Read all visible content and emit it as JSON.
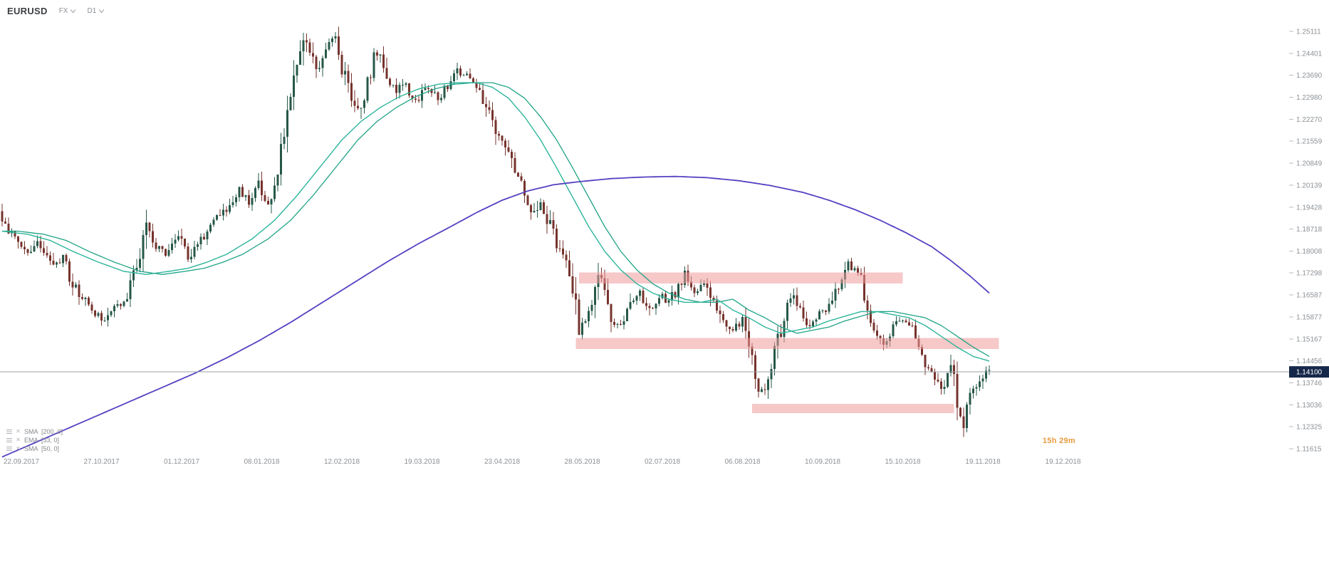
{
  "header": {
    "symbol": "EURUSD",
    "market": "FX",
    "timeframe": "D1"
  },
  "countdown": "15h 29m",
  "colors": {
    "background": "#ffffff",
    "candle_up": "#265849",
    "candle_down": "#76332d",
    "ema33": "#2cb59b",
    "sma50": "#1fa386",
    "sma200": "#5342c2",
    "zone": "#ef9a9a",
    "current_price_line": "#9aa0a6",
    "current_price_badge_bg": "#16284a",
    "current_price_badge_text": "#ffffff",
    "axis_text": "#8c9196",
    "countdown_text": "#e79b3c"
  },
  "chart_data": {
    "type": "candlestick",
    "symbol": "EURUSD",
    "timeframe": "D1",
    "title": "EURUSD FX D1 daily candlestick chart with SMA 200, EMA 33, SMA 50 and three highlighted support/resistance zones",
    "indicators": [
      {
        "name": "SMA",
        "period": 200,
        "shift": 0,
        "label": "SMA  [200, 0]"
      },
      {
        "name": "EMA",
        "period": 33,
        "shift": 0,
        "label": "EMA  [33, 0]"
      },
      {
        "name": "SMA",
        "period": 50,
        "shift": 0,
        "label": "SMA  [50, 0]"
      }
    ],
    "y_axis": {
      "labels": [
        "1.25111",
        "1.24401",
        "1.23690",
        "1.22980",
        "1.22270",
        "1.21559",
        "1.20849",
        "1.20139",
        "1.19428",
        "1.18718",
        "1.18008",
        "1.17298",
        "1.16587",
        "1.15877",
        "1.15167",
        "1.14456",
        "1.13746",
        "1.13036",
        "1.12325",
        "1.11615"
      ],
      "current_price": 1.141,
      "current_price_label": "1.14100"
    },
    "x_axis": {
      "labels": [
        "22.09.2017",
        "27.10.2017",
        "01.12.2017",
        "08.01.2018",
        "12.02.2018",
        "19.03.2018",
        "23.04.2018",
        "28.05.2018",
        "02.07.2018",
        "06.08.2018",
        "10.09.2018",
        "15.10.2018",
        "19.11.2018",
        "19.12.2018"
      ],
      "first_label_index": 6,
      "label_step": 25
    },
    "num_candles": 309,
    "ylim": [
      1.11615,
      1.25111
    ],
    "grid": false,
    "zones": [
      {
        "start_index": 180,
        "end_index": 281,
        "top": 1.1731,
        "bottom": 1.1696
      },
      {
        "start_index": 179,
        "end_index": 311,
        "top": 1.152,
        "bottom": 1.1484
      },
      {
        "start_index": 234,
        "end_index": 297,
        "top": 1.1307,
        "bottom": 1.1277
      }
    ],
    "price_trend_anchors": [
      [
        0,
        1.193
      ],
      [
        3,
        1.187
      ],
      [
        6,
        1.1815
      ],
      [
        9,
        1.179
      ],
      [
        12,
        1.1825
      ],
      [
        14,
        1.1805
      ],
      [
        17,
        1.1765
      ],
      [
        20,
        1.178
      ],
      [
        23,
        1.1695
      ],
      [
        26,
        1.1655
      ],
      [
        30,
        1.16
      ],
      [
        33,
        1.1575
      ],
      [
        36,
        1.1615
      ],
      [
        40,
        1.1655
      ],
      [
        44,
        1.178
      ],
      [
        46,
        1.1875
      ],
      [
        49,
        1.1815
      ],
      [
        52,
        1.179
      ],
      [
        56,
        1.185
      ],
      [
        59,
        1.1785
      ],
      [
        63,
        1.1835
      ],
      [
        67,
        1.189
      ],
      [
        71,
        1.1935
      ],
      [
        75,
        1.1995
      ],
      [
        78,
        1.196
      ],
      [
        81,
        1.2015
      ],
      [
        84,
        1.196
      ],
      [
        87,
        1.2055
      ],
      [
        90,
        1.223
      ],
      [
        93,
        1.2395
      ],
      [
        95,
        1.2495
      ],
      [
        97,
        1.2445
      ],
      [
        99,
        1.2385
      ],
      [
        102,
        1.2455
      ],
      [
        105,
        1.2505
      ],
      [
        107,
        1.2395
      ],
      [
        110,
        1.2295
      ],
      [
        112,
        1.2245
      ],
      [
        115,
        1.234
      ],
      [
        118,
        1.2455
      ],
      [
        121,
        1.237
      ],
      [
        124,
        1.231
      ],
      [
        127,
        1.2355
      ],
      [
        129,
        1.229
      ],
      [
        131,
        1.2285
      ],
      [
        134,
        1.234
      ],
      [
        137,
        1.2295
      ],
      [
        140,
        1.2335
      ],
      [
        143,
        1.238
      ],
      [
        146,
        1.2365
      ],
      [
        149,
        1.234
      ],
      [
        152,
        1.227
      ],
      [
        155,
        1.219
      ],
      [
        158,
        1.2135
      ],
      [
        161,
        1.2065
      ],
      [
        164,
        1.198
      ],
      [
        167,
        1.192
      ],
      [
        169,
        1.196
      ],
      [
        172,
        1.188
      ],
      [
        175,
        1.18
      ],
      [
        177,
        1.1765
      ],
      [
        179,
        1.169
      ],
      [
        181,
        1.1555
      ],
      [
        184,
        1.16
      ],
      [
        187,
        1.173
      ],
      [
        189,
        1.166
      ],
      [
        191,
        1.159
      ],
      [
        194,
        1.1555
      ],
      [
        197,
        1.163
      ],
      [
        200,
        1.166
      ],
      [
        203,
        1.1605
      ],
      [
        206,
        1.1655
      ],
      [
        209,
        1.1635
      ],
      [
        212,
        1.168
      ],
      [
        214,
        1.1725
      ],
      [
        217,
        1.167
      ],
      [
        220,
        1.169
      ],
      [
        223,
        1.162
      ],
      [
        226,
        1.157
      ],
      [
        229,
        1.1545
      ],
      [
        232,
        1.1575
      ],
      [
        234,
        1.149
      ],
      [
        236,
        1.139
      ],
      [
        238,
        1.134
      ],
      [
        240,
        1.14
      ],
      [
        243,
        1.151
      ],
      [
        246,
        1.162
      ],
      [
        248,
        1.167
      ],
      [
        250,
        1.161
      ],
      [
        253,
        1.1565
      ],
      [
        256,
        1.16
      ],
      [
        259,
        1.1625
      ],
      [
        262,
        1.168
      ],
      [
        265,
        1.1755
      ],
      [
        268,
        1.1735
      ],
      [
        270,
        1.165
      ],
      [
        273,
        1.156
      ],
      [
        276,
        1.15
      ],
      [
        279,
        1.1565
      ],
      [
        282,
        1.158
      ],
      [
        285,
        1.1545
      ],
      [
        288,
        1.148
      ],
      [
        290,
        1.1415
      ],
      [
        293,
        1.137
      ],
      [
        295,
        1.1345
      ],
      [
        297,
        1.1425
      ],
      [
        299,
        1.132
      ],
      [
        301,
        1.125
      ],
      [
        303,
        1.133
      ],
      [
        305,
        1.1365
      ],
      [
        307,
        1.14
      ],
      [
        308,
        1.141
      ]
    ],
    "ema33_anchors": [
      [
        0,
        1.1865
      ],
      [
        8,
        1.1855
      ],
      [
        15,
        1.1835
      ],
      [
        22,
        1.18
      ],
      [
        30,
        1.1765
      ],
      [
        38,
        1.1735
      ],
      [
        45,
        1.1725
      ],
      [
        52,
        1.1735
      ],
      [
        58,
        1.1745
      ],
      [
        64,
        1.1765
      ],
      [
        70,
        1.179
      ],
      [
        78,
        1.184
      ],
      [
        85,
        1.19
      ],
      [
        92,
        1.198
      ],
      [
        99,
        1.207
      ],
      [
        106,
        1.216
      ],
      [
        112,
        1.222
      ],
      [
        118,
        1.2265
      ],
      [
        124,
        1.23
      ],
      [
        130,
        1.2325
      ],
      [
        136,
        1.234
      ],
      [
        142,
        1.2345
      ],
      [
        148,
        1.2345
      ],
      [
        153,
        1.233
      ],
      [
        158,
        1.2295
      ],
      [
        163,
        1.2235
      ],
      [
        168,
        1.216
      ],
      [
        173,
        1.207
      ],
      [
        178,
        1.1975
      ],
      [
        183,
        1.188
      ],
      [
        188,
        1.18
      ],
      [
        193,
        1.174
      ],
      [
        198,
        1.1695
      ],
      [
        203,
        1.1665
      ],
      [
        208,
        1.1645
      ],
      [
        213,
        1.1635
      ],
      [
        218,
        1.1635
      ],
      [
        223,
        1.1645
      ],
      [
        228,
        1.161
      ],
      [
        233,
        1.1585
      ],
      [
        238,
        1.1555
      ],
      [
        243,
        1.1535
      ],
      [
        248,
        1.1545
      ],
      [
        253,
        1.1555
      ],
      [
        258,
        1.1575
      ],
      [
        263,
        1.159
      ],
      [
        268,
        1.1605
      ],
      [
        273,
        1.1605
      ],
      [
        278,
        1.1595
      ],
      [
        283,
        1.1585
      ],
      [
        288,
        1.156
      ],
      [
        293,
        1.1525
      ],
      [
        298,
        1.149
      ],
      [
        303,
        1.146
      ],
      [
        308,
        1.1445
      ]
    ],
    "sma50_lag": 5,
    "sma200_anchors": [
      [
        0,
        1.1135
      ],
      [
        10,
        1.118
      ],
      [
        20,
        1.1225
      ],
      [
        30,
        1.127
      ],
      [
        40,
        1.1315
      ],
      [
        50,
        1.136
      ],
      [
        60,
        1.1405
      ],
      [
        70,
        1.1455
      ],
      [
        80,
        1.151
      ],
      [
        90,
        1.157
      ],
      [
        100,
        1.1635
      ],
      [
        110,
        1.17
      ],
      [
        120,
        1.1765
      ],
      [
        130,
        1.1825
      ],
      [
        140,
        1.188
      ],
      [
        148,
        1.1925
      ],
      [
        156,
        1.1965
      ],
      [
        164,
        1.1995
      ],
      [
        172,
        1.2015
      ],
      [
        180,
        1.2025
      ],
      [
        190,
        1.2035
      ],
      [
        200,
        1.204
      ],
      [
        210,
        1.2042
      ],
      [
        220,
        1.2038
      ],
      [
        230,
        1.2028
      ],
      [
        240,
        1.2012
      ],
      [
        250,
        1.199
      ],
      [
        258,
        1.1965
      ],
      [
        266,
        1.1935
      ],
      [
        274,
        1.19
      ],
      [
        282,
        1.186
      ],
      [
        290,
        1.1815
      ],
      [
        296,
        1.177
      ],
      [
        302,
        1.172
      ],
      [
        308,
        1.1665
      ]
    ]
  }
}
